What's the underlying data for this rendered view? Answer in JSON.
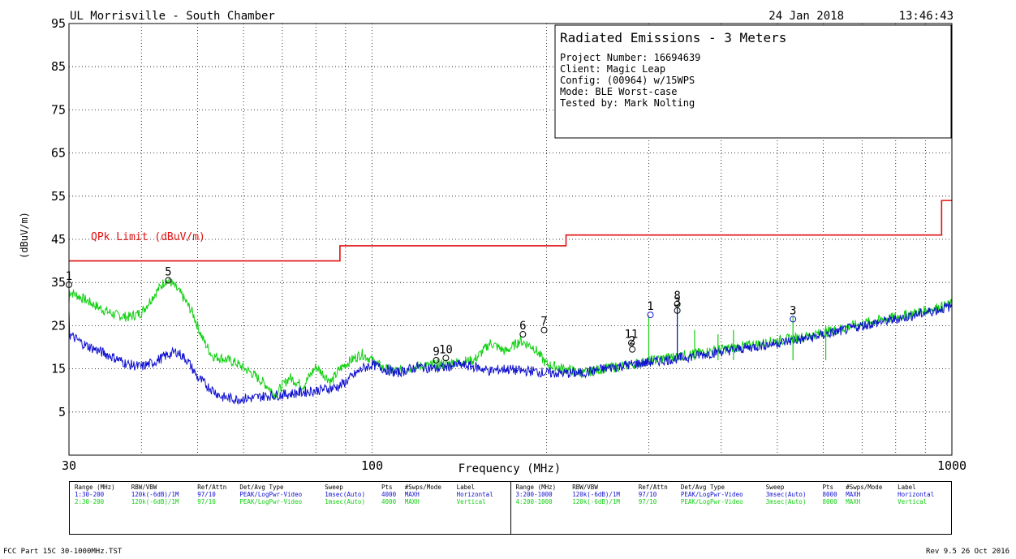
{
  "header": {
    "site": "UL Morrisville - South Chamber",
    "date": "24 Jan 2018",
    "time": "13:46:43"
  },
  "info_box": {
    "title": "Radiated Emissions - 3 Meters",
    "lines": [
      "Project Number: 16694639",
      "Client: Magic Leap",
      "Config: (00964) w/15WPS",
      "Mode: BLE Worst-case",
      "Tested by: Mark Nolting"
    ]
  },
  "limit_label": "QPk Limit (dBuV/m)",
  "settings_table": {
    "columns_left": [
      "Range (MHz)",
      "RBW/VBW",
      "Ref/Attn",
      "Det/Avg Type",
      "Sweep",
      "Pts",
      "#Swps/Mode",
      "Label"
    ],
    "rows_left": [
      [
        "1:30-200",
        "120k(-6dB)/1M",
        "97/10",
        "PEAK/LogPwr-Video",
        "1msec(Auto)",
        "4000",
        "MAXH",
        "Horizontal"
      ],
      [
        "2:30-200",
        "120k(-6dB)/1M",
        "97/10",
        "PEAK/LogPwr-Video",
        "1msec(Auto)",
        "4000",
        "MAXH",
        "Vertical"
      ]
    ],
    "columns_right": [
      "Range (MHz)",
      "RBW/VBW",
      "Ref/Attn",
      "Det/Avg Type",
      "Sweep",
      "Pts",
      "#Swps/Mode",
      "Label"
    ],
    "rows_right": [
      [
        "3:200-1000",
        "120k(-6dB)/1M",
        "97/10",
        "PEAK/LogPwr-Video",
        "3msec(Auto)",
        "8000",
        "MAXH",
        "Horizontal"
      ],
      [
        "4:200-1000",
        "120k(-6dB)/1M",
        "97/10",
        "PEAK/LogPwr-Video",
        "3msec(Auto)",
        "8000",
        "MAXH",
        "Vertical"
      ]
    ]
  },
  "footer": {
    "file": "FCC Part 15C 30-1000MHz.TST",
    "rev": "Rev 9.5 26 Oct 2016"
  },
  "colors": {
    "horizontal": "#1010d0",
    "vertical": "#10d010",
    "limit": "#e01010",
    "grid": "#000000"
  },
  "chart_data": {
    "type": "line",
    "xlabel": "Frequency (MHz)",
    "ylabel": "(dBuV/m)",
    "x_scale": "log",
    "xlim": [
      30,
      1000
    ],
    "ylim": [
      -5,
      95
    ],
    "x_tick_labels": [
      {
        "value": 30,
        "label": "30"
      },
      {
        "value": 100,
        "label": "100"
      },
      {
        "value": 1000,
        "label": "1000"
      }
    ],
    "y_ticks": [
      5,
      15,
      25,
      35,
      45,
      55,
      65,
      75,
      85,
      95
    ],
    "grid": true,
    "limit": {
      "name": "QPk Limit (dBuV/m)",
      "steps": [
        {
          "x0": 30,
          "x1": 88,
          "y": 40
        },
        {
          "x0": 88,
          "x1": 216,
          "y": 43.5
        },
        {
          "x0": 216,
          "x1": 960,
          "y": 46
        },
        {
          "x0": 960,
          "x1": 1000,
          "y": 54
        }
      ]
    },
    "series": [
      {
        "name": "Horizontal",
        "x": [
          30,
          32,
          34,
          36,
          38,
          40,
          42,
          44,
          46,
          48,
          50,
          52,
          55,
          58,
          62,
          66,
          70,
          75,
          80,
          85,
          88,
          92,
          96,
          100,
          105,
          110,
          120,
          130,
          140,
          150,
          160,
          170,
          180,
          190,
          200,
          215,
          230,
          250,
          280,
          320,
          360,
          400,
          450,
          500,
          560,
          630,
          700,
          800,
          900,
          1000
        ],
        "values": [
          23,
          20.5,
          19,
          17.5,
          16,
          15.5,
          16.5,
          18,
          19,
          17,
          13,
          11,
          8.5,
          8,
          8.2,
          8.8,
          9,
          9.5,
          10,
          10.5,
          11,
          13,
          15,
          16,
          15,
          14,
          15.5,
          15,
          16,
          15.5,
          14.5,
          15,
          14.5,
          14.5,
          14,
          14,
          14,
          15,
          16,
          17,
          18,
          19,
          20,
          21,
          22,
          23.5,
          25,
          26.5,
          28,
          29.5
        ]
      },
      {
        "name": "Vertical",
        "x": [
          30,
          32,
          34,
          36,
          38,
          40,
          42,
          44,
          45,
          47,
          49,
          51,
          53,
          55,
          58,
          62,
          66,
          68,
          72,
          76,
          80,
          85,
          88,
          92,
          96,
          100,
          105,
          110,
          120,
          130,
          140,
          150,
          160,
          170,
          180,
          190,
          200,
          215,
          230,
          250,
          280,
          320,
          360,
          400,
          450,
          500,
          560,
          630,
          700,
          800,
          900,
          1000
        ],
        "values": [
          33,
          31,
          29,
          27.5,
          27,
          28,
          32,
          35.5,
          35,
          32,
          28,
          22,
          18,
          17.5,
          16.5,
          14,
          11,
          9,
          13,
          11,
          15.5,
          12,
          15,
          17,
          18.5,
          17,
          15,
          14.5,
          15.5,
          16,
          16.5,
          17,
          21,
          19,
          21.5,
          20,
          16,
          15,
          14,
          15,
          16,
          17.5,
          18.5,
          19.5,
          20.5,
          21.5,
          22.5,
          24,
          25.5,
          27,
          28.5,
          30
        ]
      }
    ],
    "spikes": [
      {
        "x": 300,
        "values": [
          27
        ]
      },
      {
        "x": 336,
        "values": [
          30,
          29
        ]
      },
      {
        "x": 360,
        "values": [
          24
        ]
      },
      {
        "x": 395,
        "values": [
          23
        ]
      },
      {
        "x": 420,
        "values": [
          24
        ]
      },
      {
        "x": 532,
        "values": [
          27
        ]
      },
      {
        "x": 606,
        "values": [
          25
        ]
      }
    ],
    "markers": [
      {
        "label": "1",
        "x": 30,
        "y": 34.5,
        "color": "vertical"
      },
      {
        "label": "5",
        "x": 44.5,
        "y": 35.5,
        "color": "vertical"
      },
      {
        "label": "9",
        "x": 129,
        "y": 17,
        "color": "vertical"
      },
      {
        "label": "10",
        "x": 134,
        "y": 17.5,
        "color": "vertical"
      },
      {
        "label": "6",
        "x": 182,
        "y": 23,
        "color": "vertical"
      },
      {
        "label": "7",
        "x": 198,
        "y": 24,
        "color": "vertical"
      },
      {
        "label": "11",
        "x": 280,
        "y": 21,
        "color": "vertical"
      },
      {
        "label": "2",
        "x": 281,
        "y": 19.5,
        "color": "vertical"
      },
      {
        "label": "1",
        "x": 302,
        "y": 27.5,
        "color": "horizontal"
      },
      {
        "label": "8",
        "x": 336,
        "y": 30,
        "color": "vertical"
      },
      {
        "label": "3",
        "x": 336,
        "y": 28.5,
        "color": "vertical"
      },
      {
        "label": "3",
        "x": 532,
        "y": 26.5,
        "color": "horizontal"
      }
    ]
  }
}
